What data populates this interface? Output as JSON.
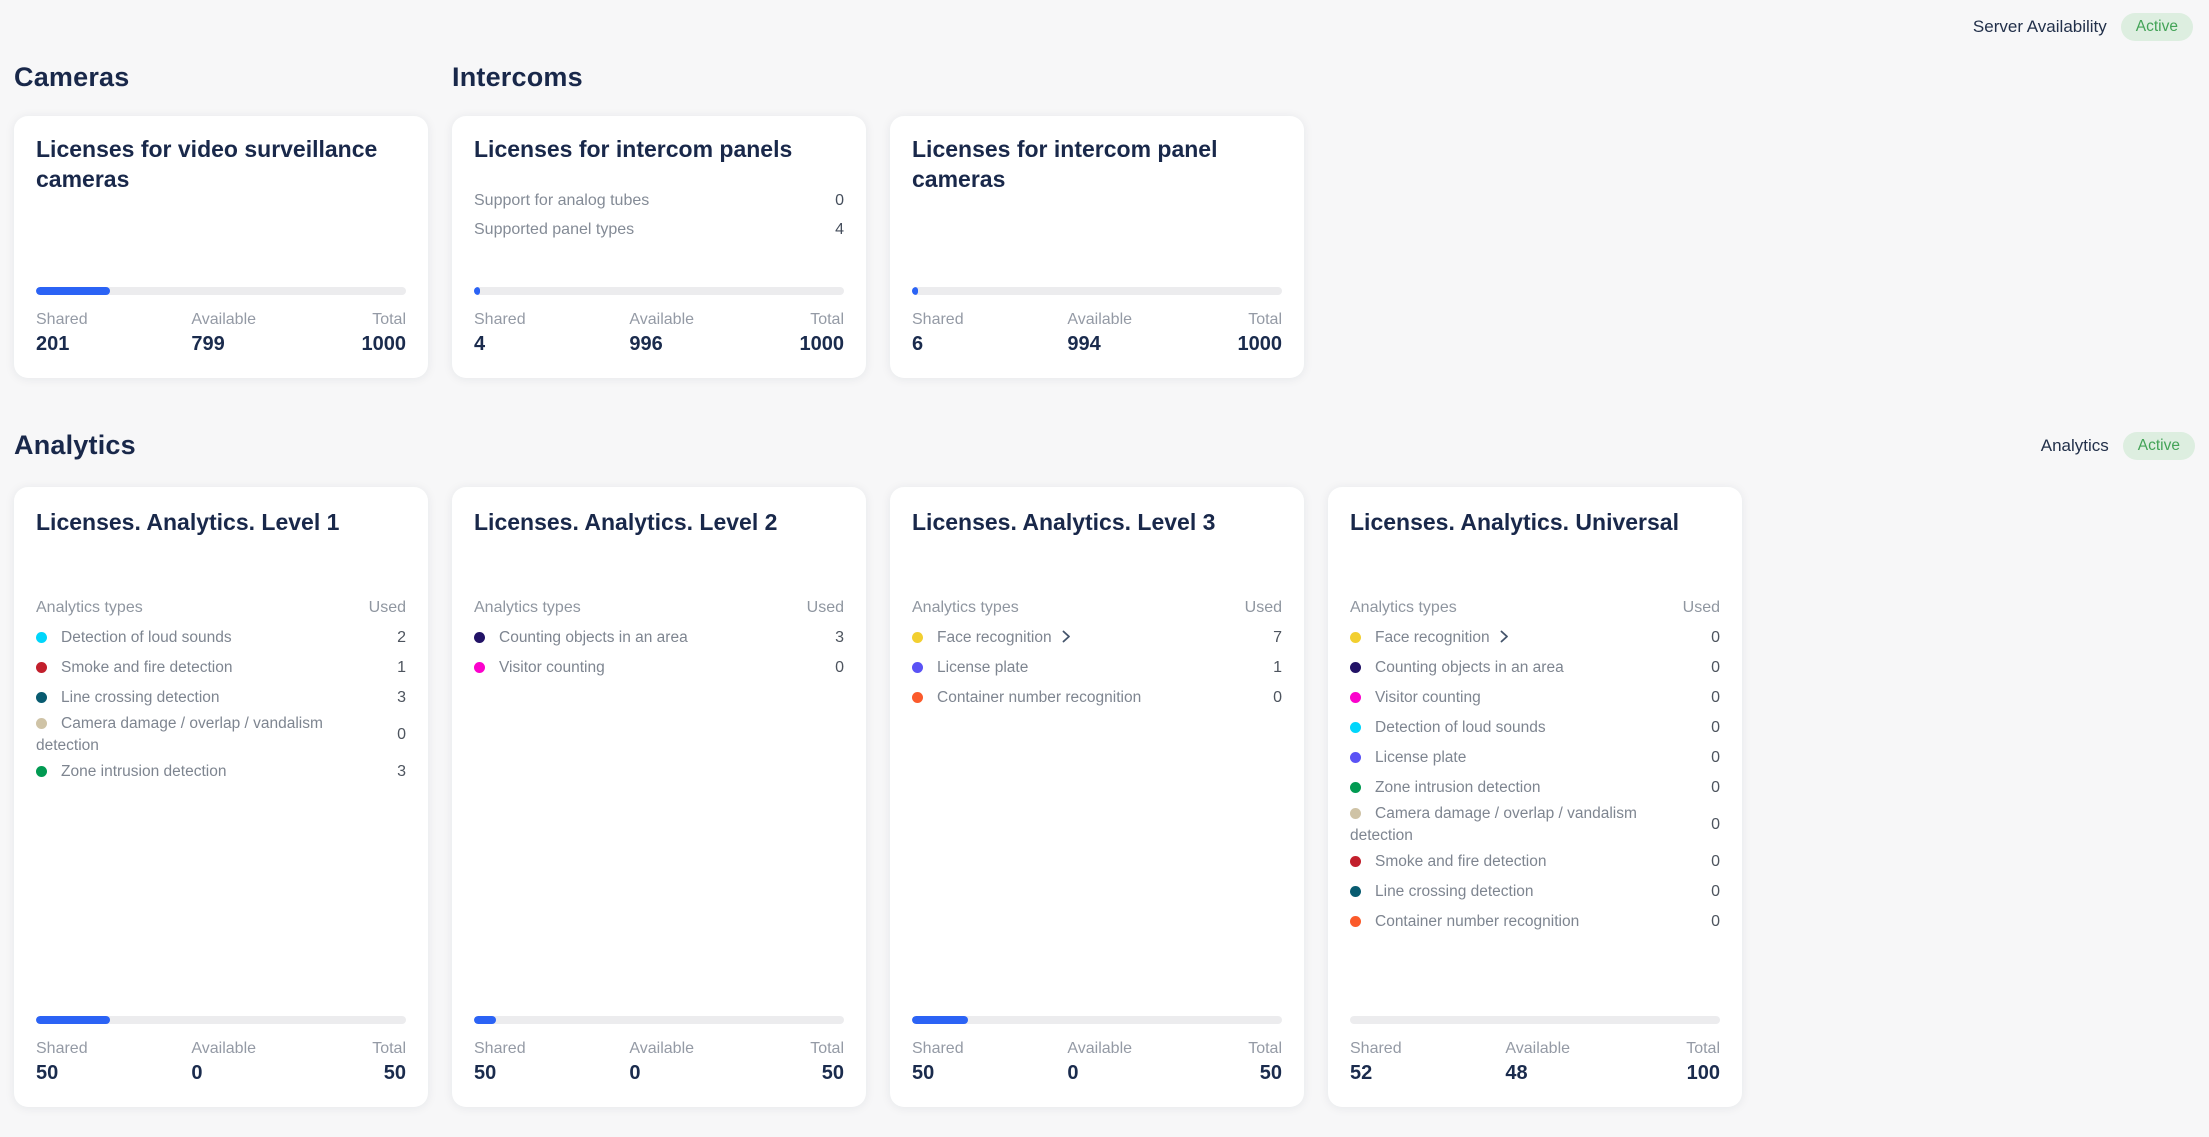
{
  "topbar": {
    "label": "Server Availability",
    "status": "Active"
  },
  "labels": {
    "analytics_types": "Analytics types",
    "used": "Used",
    "shared": "Shared",
    "available": "Available",
    "total": "Total"
  },
  "sections": {
    "cameras": {
      "heading": "Cameras"
    },
    "intercoms": {
      "heading": "Intercoms"
    },
    "analytics": {
      "heading": "Analytics",
      "status_label": "Analytics",
      "status": "Active"
    }
  },
  "colors": {
    "accent_blue": "#2b63f5",
    "badge_bg": "#ddeee0",
    "badge_text": "#43a357"
  },
  "cards": {
    "video_surveillance": {
      "title": "Licenses for video surveillance cameras",
      "progress_pct": 20,
      "footer": {
        "shared": "201",
        "available": "799",
        "total": "1000"
      }
    },
    "intercom_panels": {
      "title": "Licenses for intercom panels",
      "rows": [
        {
          "label": "Support for analog tubes",
          "value": "0"
        },
        {
          "label": "Supported panel types",
          "value": "4"
        }
      ],
      "progress_pct": 1.5,
      "footer": {
        "shared": "4",
        "available": "996",
        "total": "1000"
      }
    },
    "intercom_panel_cameras": {
      "title": "Licenses for intercom panel cameras",
      "progress_pct": 1.5,
      "footer": {
        "shared": "6",
        "available": "994",
        "total": "1000"
      }
    },
    "analytics_l1": {
      "title": "Licenses. Analytics. Level 1",
      "rows": [
        {
          "color": "#00d6fb",
          "label": "Detection of loud sounds",
          "value": "2"
        },
        {
          "color": "#c21f2c",
          "label": "Smoke and fire detection",
          "value": "1"
        },
        {
          "color": "#085b70",
          "label": "Line crossing detection",
          "value": "3"
        },
        {
          "color": "#cfc3a6",
          "label": "Camera damage / overlap / vandalism detection",
          "value": "0"
        },
        {
          "color": "#019a52",
          "label": "Zone intrusion detection",
          "value": "3"
        }
      ],
      "progress_pct": 20,
      "footer": {
        "shared": "50",
        "available": "0",
        "total": "50"
      }
    },
    "analytics_l2": {
      "title": "Licenses. Analytics. Level 2",
      "rows": [
        {
          "color": "#221266",
          "label": "Counting objects in an area",
          "value": "3"
        },
        {
          "color": "#fb02cc",
          "label": "Visitor counting",
          "value": "0"
        }
      ],
      "progress_pct": 6,
      "footer": {
        "shared": "50",
        "available": "0",
        "total": "50"
      }
    },
    "analytics_l3": {
      "title": "Licenses. Analytics. Level 3",
      "rows": [
        {
          "color": "#f2cf30",
          "label": "Face recognition",
          "value": "7",
          "chevron": true
        },
        {
          "color": "#5a52f5",
          "label": "License plate",
          "value": "1"
        },
        {
          "color": "#fb5a2b",
          "label": "Container number recognition",
          "value": "0"
        }
      ],
      "progress_pct": 15,
      "footer": {
        "shared": "50",
        "available": "0",
        "total": "50"
      }
    },
    "analytics_universal": {
      "title": "Licenses. Analytics. Universal",
      "rows": [
        {
          "color": "#f2cf30",
          "label": "Face recognition",
          "value": "0",
          "chevron": true
        },
        {
          "color": "#221266",
          "label": "Counting objects in an area",
          "value": "0"
        },
        {
          "color": "#fb02cc",
          "label": "Visitor counting",
          "value": "0"
        },
        {
          "color": "#00d6fb",
          "label": "Detection of loud sounds",
          "value": "0"
        },
        {
          "color": "#5a52f5",
          "label": "License plate",
          "value": "0"
        },
        {
          "color": "#019a52",
          "label": "Zone intrusion detection",
          "value": "0"
        },
        {
          "color": "#cfc3a6",
          "label": "Camera damage / overlap / vandalism detection",
          "value": "0"
        },
        {
          "color": "#c21f2c",
          "label": "Smoke and fire detection",
          "value": "0"
        },
        {
          "color": "#085b70",
          "label": "Line crossing detection",
          "value": "0"
        },
        {
          "color": "#fb5a2b",
          "label": "Container number recognition",
          "value": "0"
        }
      ],
      "progress_pct": 0,
      "footer": {
        "shared": "52",
        "available": "48",
        "total": "100"
      }
    }
  }
}
